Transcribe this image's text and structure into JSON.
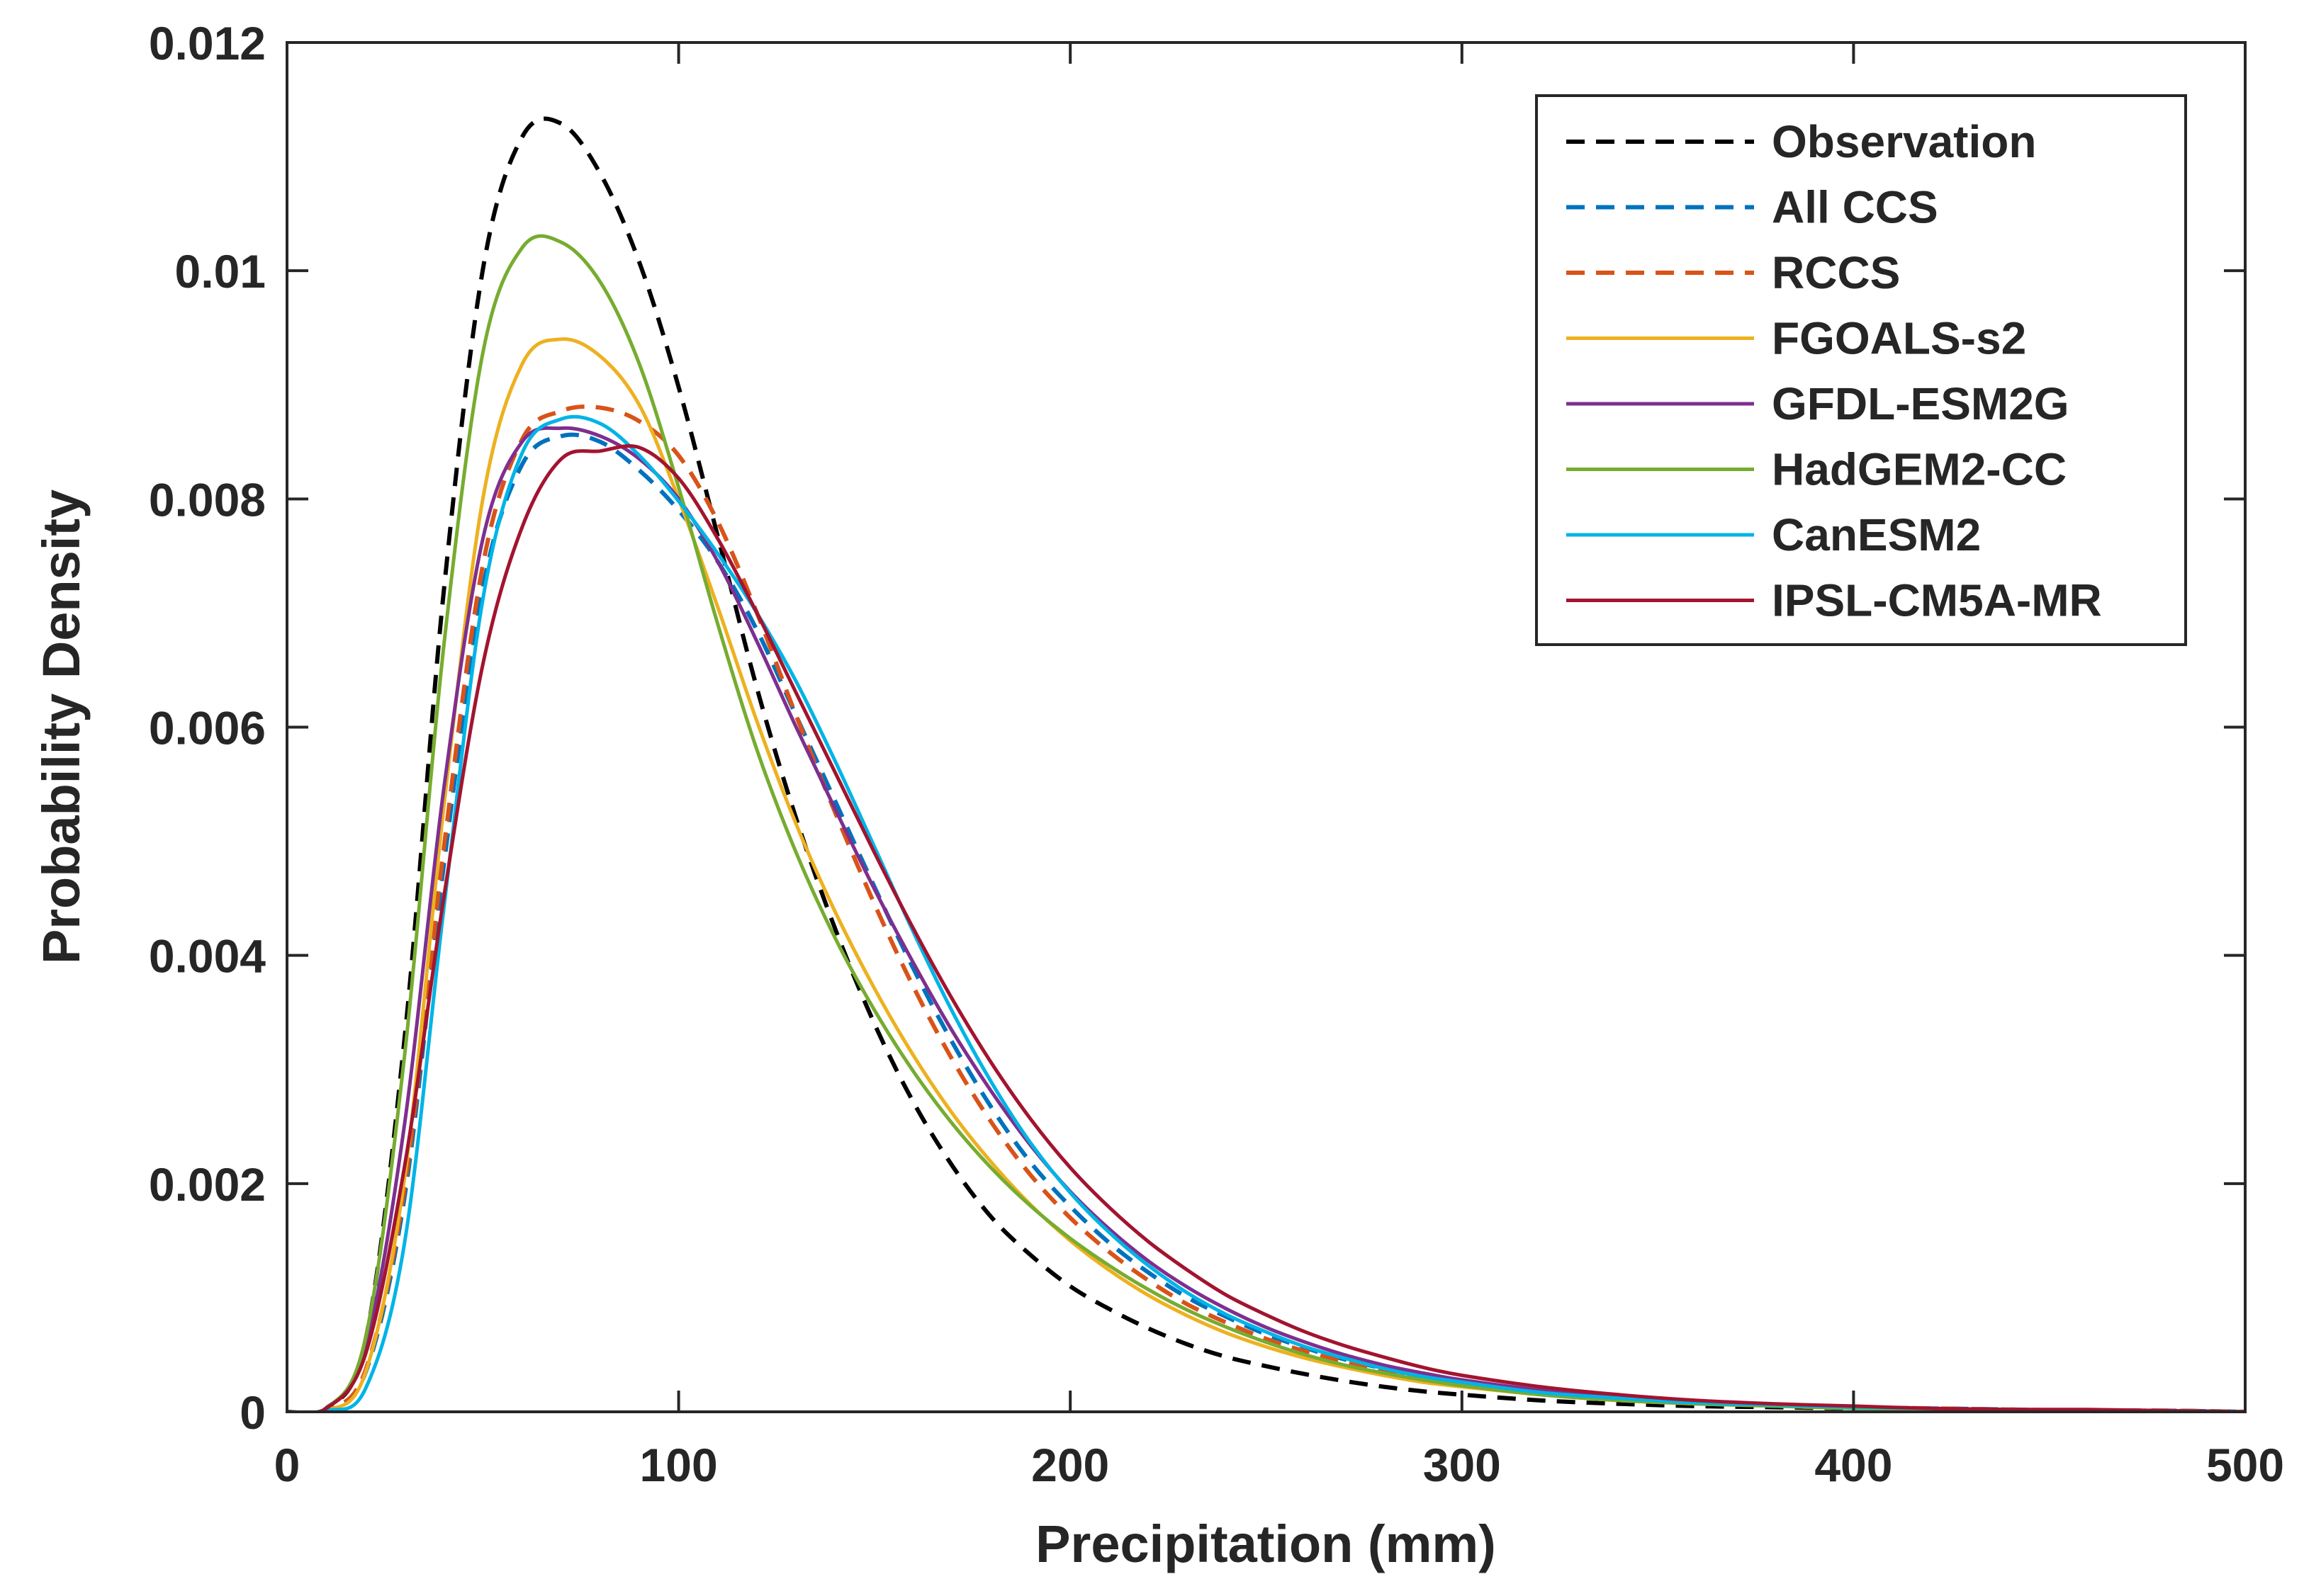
{
  "chart_data": {
    "type": "line",
    "title": "",
    "xlabel": "Precipitation (mm)",
    "ylabel": "Probability Density",
    "xlim": [
      0,
      500
    ],
    "ylim": [
      0,
      0.012
    ],
    "xticks": [
      0,
      100,
      200,
      300,
      400,
      500
    ],
    "xtick_labels": [
      "0",
      "100",
      "200",
      "300",
      "400",
      "500"
    ],
    "yticks": [
      0,
      0.002,
      0.004,
      0.006,
      0.008,
      0.01,
      0.012
    ],
    "ytick_labels": [
      "0",
      "0.002",
      "0.004",
      "0.006",
      "0.008",
      "0.01",
      "0.012"
    ],
    "grid": false,
    "legend_position": "top-right",
    "x": [
      0,
      10,
      20,
      30,
      40,
      50,
      60,
      70,
      80,
      90,
      100,
      110,
      120,
      130,
      140,
      150,
      160,
      170,
      180,
      190,
      200,
      210,
      220,
      230,
      240,
      250,
      260,
      270,
      280,
      290,
      300,
      320,
      340,
      360,
      380,
      400,
      420,
      440,
      460,
      480,
      500
    ],
    "series": [
      {
        "name": "Observation",
        "color": "#000000",
        "style": "dashed",
        "values": [
          0,
          3e-05,
          0.00062,
          0.00327,
          0.00718,
          0.01001,
          0.01117,
          0.01129,
          0.01085,
          0.01007,
          0.00898,
          0.00767,
          0.00634,
          0.0052,
          0.00423,
          0.0034,
          0.00271,
          0.00215,
          0.0017,
          0.00137,
          0.0011,
          0.0009,
          0.00073,
          0.00059,
          0.00048,
          0.0004,
          0.00033,
          0.00027,
          0.00022,
          0.00018,
          0.00015,
          0.0001,
          7e-05,
          5e-05,
          4e-05,
          3e-05,
          2e-05,
          1e-05,
          1e-05,
          1e-05,
          0
        ]
      },
      {
        "name": "All CCS",
        "color": "#0072BD",
        "style": "dashed",
        "values": [
          0,
          2e-05,
          0.00034,
          0.00188,
          0.00478,
          0.00722,
          0.0083,
          0.00855,
          0.0085,
          0.00825,
          0.0079,
          0.00745,
          0.00685,
          0.0061,
          0.00535,
          0.0046,
          0.00388,
          0.00323,
          0.00266,
          0.00218,
          0.0018,
          0.00148,
          0.00122,
          0.001,
          0.00083,
          0.00068,
          0.00056,
          0.00046,
          0.00038,
          0.00031,
          0.00026,
          0.00018,
          0.00012,
          9e-05,
          6e-05,
          4e-05,
          3e-05,
          2e-05,
          1e-05,
          1e-05,
          0
        ]
      },
      {
        "name": "RCCS",
        "color": "#D95319",
        "style": "dashed",
        "values": [
          0,
          2e-05,
          0.00036,
          0.00196,
          0.00493,
          0.00742,
          0.00852,
          0.00877,
          0.0088,
          0.00868,
          0.00838,
          0.0078,
          0.007,
          0.0061,
          0.00525,
          0.00445,
          0.00372,
          0.00308,
          0.00253,
          0.00207,
          0.0017,
          0.0014,
          0.00115,
          0.00094,
          0.00078,
          0.00064,
          0.00053,
          0.00044,
          0.00036,
          0.0003,
          0.00025,
          0.00017,
          0.00012,
          8e-05,
          6e-05,
          4e-05,
          3e-05,
          2e-05,
          1e-05,
          1e-05,
          0
        ]
      },
      {
        "name": "FGOALS-s2",
        "color": "#EDB120",
        "style": "solid",
        "values": [
          0,
          1e-05,
          0.00034,
          0.00205,
          0.00529,
          0.008,
          0.00918,
          0.0094,
          0.00925,
          0.00882,
          0.008,
          0.00705,
          0.00605,
          0.00515,
          0.00438,
          0.00371,
          0.00312,
          0.00261,
          0.00218,
          0.00181,
          0.0015,
          0.00124,
          0.00102,
          0.00084,
          0.00069,
          0.00057,
          0.00047,
          0.00039,
          0.00032,
          0.00026,
          0.00022,
          0.00015,
          0.0001,
          7e-05,
          5e-05,
          3e-05,
          2e-05,
          2e-05,
          1e-05,
          1e-05,
          0
        ]
      },
      {
        "name": "GFDL-ESM2G",
        "color": "#7E2F8E",
        "style": "solid",
        "values": [
          0,
          3e-05,
          0.00056,
          0.00252,
          0.00545,
          0.00765,
          0.0085,
          0.00862,
          0.00855,
          0.00835,
          0.008,
          0.00745,
          0.00675,
          0.006,
          0.00528,
          0.00458,
          0.00393,
          0.00333,
          0.0028,
          0.00233,
          0.00193,
          0.0016,
          0.00132,
          0.00109,
          0.0009,
          0.00074,
          0.00061,
          0.0005,
          0.00041,
          0.00034,
          0.00028,
          0.00019,
          0.00013,
          9e-05,
          6e-05,
          4e-05,
          3e-05,
          2e-05,
          1e-05,
          1e-05,
          0
        ]
      },
      {
        "name": "HadGEM2-CC",
        "color": "#77AC30",
        "style": "solid",
        "values": [
          0,
          3e-05,
          0.00064,
          0.00312,
          0.0067,
          0.00928,
          0.0102,
          0.01025,
          0.0099,
          0.00918,
          0.0081,
          0.0069,
          0.0058,
          0.0049,
          0.00415,
          0.00352,
          0.00298,
          0.00252,
          0.00213,
          0.0018,
          0.00152,
          0.00128,
          0.00107,
          0.00089,
          0.00074,
          0.00061,
          0.0005,
          0.00041,
          0.00034,
          0.00028,
          0.00023,
          0.00015,
          0.0001,
          7e-05,
          5e-05,
          3e-05,
          2e-05,
          2e-05,
          1e-05,
          1e-05,
          0
        ]
      },
      {
        "name": "CanESM2",
        "color": "#00B4E6",
        "style": "solid",
        "values": [
          0,
          1e-05,
          0.0002,
          0.00148,
          0.0044,
          0.00712,
          0.0084,
          0.0087,
          0.00866,
          0.00838,
          0.00798,
          0.00752,
          0.007,
          0.0064,
          0.0057,
          0.00495,
          0.0042,
          0.0035,
          0.00288,
          0.00235,
          0.00192,
          0.00157,
          0.00128,
          0.00104,
          0.00085,
          0.0007,
          0.00057,
          0.00047,
          0.00038,
          0.00031,
          0.00026,
          0.00017,
          0.00012,
          8e-05,
          6e-05,
          4e-05,
          3e-05,
          2e-05,
          1e-05,
          1e-05,
          0
        ]
      },
      {
        "name": "IPSL-CM5A-MR",
        "color": "#A2142F",
        "style": "solid",
        "values": [
          0,
          3e-05,
          0.0005,
          0.00215,
          0.0045,
          0.00655,
          0.00775,
          0.00835,
          0.00842,
          0.00845,
          0.00818,
          0.00765,
          0.007,
          0.0063,
          0.0056,
          0.0049,
          0.00423,
          0.00361,
          0.00305,
          0.00256,
          0.00214,
          0.00179,
          0.00149,
          0.00124,
          0.00102,
          0.00085,
          0.0007,
          0.00058,
          0.00048,
          0.00039,
          0.00032,
          0.00022,
          0.00015,
          0.0001,
          7e-05,
          5e-05,
          3e-05,
          2e-05,
          2e-05,
          1e-05,
          0
        ]
      }
    ]
  }
}
